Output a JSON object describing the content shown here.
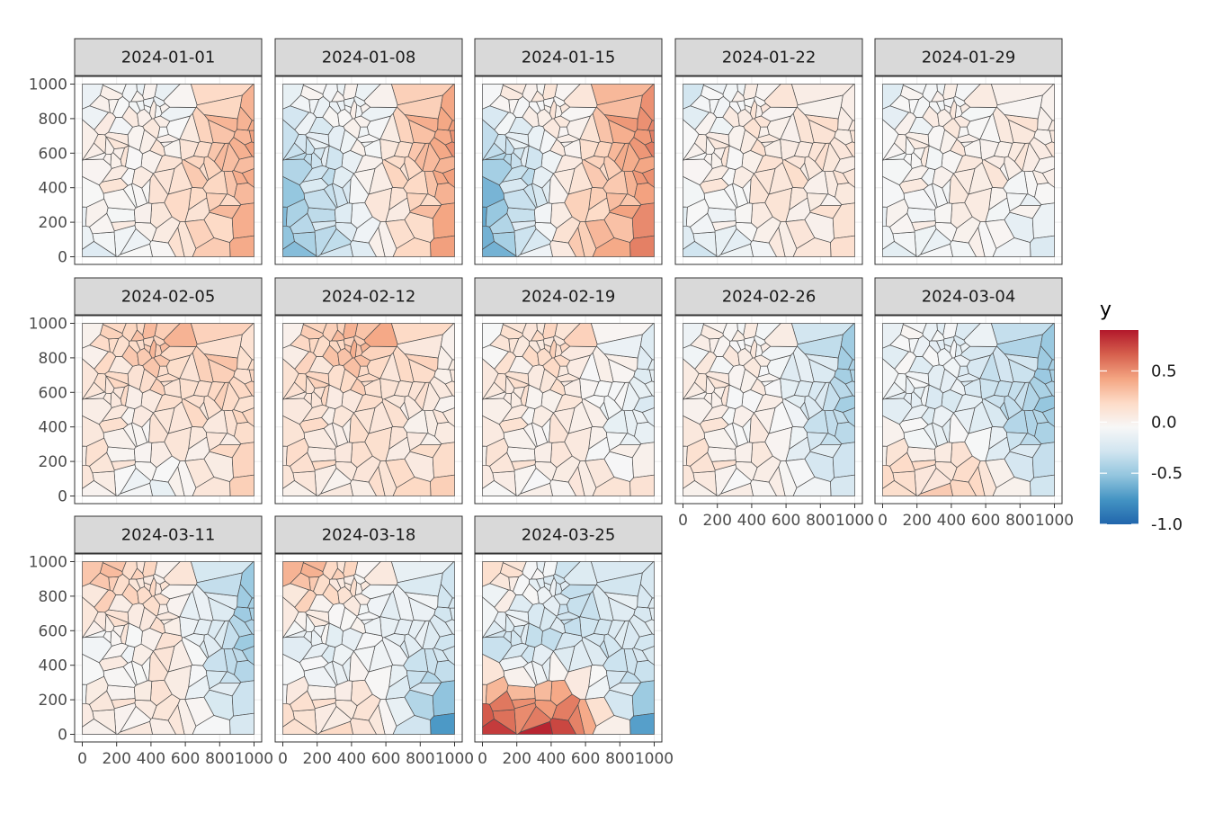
{
  "chart_data": {
    "type": "heatmap",
    "subtype": "faceted voronoi tessellation map",
    "facet_variable": "date",
    "x_range": [
      0,
      1000
    ],
    "y_range": [
      0,
      1000
    ],
    "x_ticks": [
      "0",
      "200",
      "400",
      "600",
      "800",
      "1000"
    ],
    "y_ticks": [
      "0",
      "200",
      "400",
      "600",
      "800",
      "1000"
    ],
    "grid": true,
    "legend": {
      "title": "y",
      "placement": "right",
      "range": [
        -1.0,
        0.9
      ],
      "ticks": [
        "0.5",
        "0.0",
        "-0.5",
        "-1.0"
      ],
      "tick_values": [
        0.5,
        0.0,
        -0.5,
        -1.0
      ],
      "colors": [
        "#2166ac",
        "#4393c3",
        "#92c5de",
        "#d1e5f0",
        "#f7f7f7",
        "#fddbc7",
        "#f4a582",
        "#d6604d",
        "#b2182b"
      ]
    },
    "region_columns": [
      "west",
      "center",
      "east"
    ],
    "region_rows": [
      "top",
      "middle",
      "bottom"
    ],
    "facets": [
      {
        "label": "2024-01-01",
        "approx_region_values": [
          [
            0.0,
            -0.05,
            0.45
          ],
          [
            0.05,
            0.15,
            0.45
          ],
          [
            -0.1,
            0.05,
            0.35
          ]
        ]
      },
      {
        "label": "2024-01-08",
        "approx_region_values": [
          [
            0.0,
            0.0,
            0.5
          ],
          [
            -0.5,
            0.05,
            0.5
          ],
          [
            -0.5,
            -0.1,
            0.4
          ]
        ]
      },
      {
        "label": "2024-01-15",
        "approx_region_values": [
          [
            0.1,
            0.1,
            0.6
          ],
          [
            -0.6,
            0.1,
            0.55
          ],
          [
            -0.6,
            0.2,
            0.5
          ]
        ]
      },
      {
        "label": "2024-01-22",
        "approx_region_values": [
          [
            -0.2,
            0.1,
            0.1
          ],
          [
            0.05,
            0.15,
            0.15
          ],
          [
            -0.2,
            0.0,
            0.1
          ]
        ]
      },
      {
        "label": "2024-01-29",
        "approx_region_values": [
          [
            -0.1,
            0.05,
            0.1
          ],
          [
            0.0,
            0.1,
            0.1
          ],
          [
            -0.05,
            0.0,
            -0.3
          ]
        ]
      },
      {
        "label": "2024-02-05",
        "approx_region_values": [
          [
            0.1,
            0.4,
            0.2
          ],
          [
            0.1,
            0.15,
            0.25
          ],
          [
            0.15,
            -0.1,
            0.2
          ]
        ]
      },
      {
        "label": "2024-02-12",
        "approx_region_values": [
          [
            0.1,
            0.45,
            0.1
          ],
          [
            0.15,
            0.15,
            0.1
          ],
          [
            0.15,
            0.1,
            0.2
          ]
        ]
      },
      {
        "label": "2024-02-19",
        "approx_region_values": [
          [
            0.05,
            0.25,
            -0.1
          ],
          [
            0.1,
            0.1,
            -0.15
          ],
          [
            0.1,
            0.05,
            0.1
          ]
        ]
      },
      {
        "label": "2024-02-26",
        "approx_region_values": [
          [
            0.0,
            0.05,
            -0.4
          ],
          [
            0.1,
            0.05,
            -0.4
          ],
          [
            0.15,
            0.05,
            -0.3
          ]
        ]
      },
      {
        "label": "2024-03-04",
        "approx_region_values": [
          [
            0.0,
            -0.1,
            -0.4
          ],
          [
            -0.1,
            -0.15,
            -0.45
          ],
          [
            0.3,
            0.3,
            -0.35
          ]
        ]
      },
      {
        "label": "2024-03-11",
        "approx_region_values": [
          [
            0.45,
            0.1,
            -0.4
          ],
          [
            -0.1,
            0.15,
            -0.45
          ],
          [
            0.15,
            0.1,
            -0.3
          ]
        ]
      },
      {
        "label": "2024-03-18",
        "approx_region_values": [
          [
            0.55,
            0.1,
            -0.2
          ],
          [
            -0.2,
            -0.05,
            -0.2
          ],
          [
            0.3,
            0.2,
            -0.9
          ]
        ]
      },
      {
        "label": "2024-03-25",
        "approx_region_values": [
          [
            0.35,
            -0.2,
            -0.15
          ],
          [
            -0.3,
            -0.25,
            -0.15
          ],
          [
            0.95,
            0.85,
            -0.9
          ]
        ]
      }
    ]
  }
}
